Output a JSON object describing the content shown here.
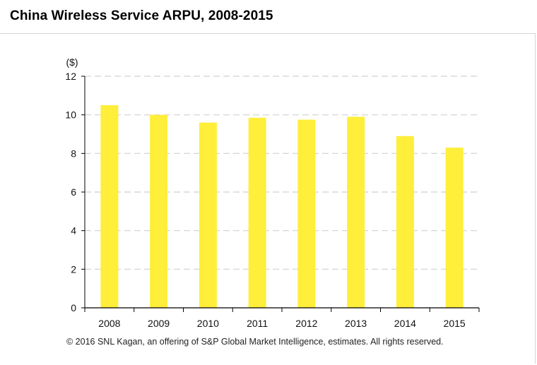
{
  "title": "China Wireless Service ARPU, 2008-2015",
  "source": "© 2016 SNL Kagan, an offering of S&P Global Market Intelligence, estimates. All rights reserved.",
  "colors": {
    "bar": "#FFEE3A",
    "grid": "#d0d0d0",
    "axis": "#000000",
    "text": "#111111"
  },
  "chart_data": {
    "type": "bar",
    "title": "China Wireless Service ARPU, 2008-2015",
    "ylabel": "($)",
    "xlabel": "",
    "categories": [
      "2008",
      "2009",
      "2010",
      "2011",
      "2012",
      "2013",
      "2014",
      "2015"
    ],
    "values": [
      10.5,
      10.0,
      9.6,
      9.85,
      9.75,
      9.9,
      8.9,
      8.3
    ],
    "ylim": [
      0,
      12
    ],
    "yticks": [
      0,
      2,
      4,
      6,
      8,
      10,
      12
    ],
    "grid": true,
    "legend": "none"
  }
}
